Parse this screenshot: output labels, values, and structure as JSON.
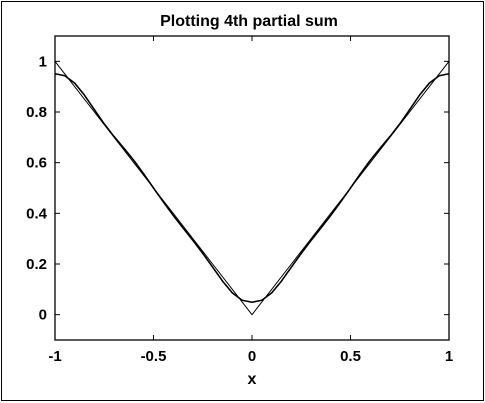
{
  "chart_data": {
    "type": "line",
    "title": "Plotting 4th partial sum",
    "xlabel": "x",
    "ylabel": "",
    "xlim": [
      -1,
      1
    ],
    "ylim": [
      -0.1,
      1.1
    ],
    "xticks": [
      -1,
      -0.5,
      0,
      0.5,
      1
    ],
    "xtick_labels": [
      "-1",
      "-0.5",
      "0",
      "0.5",
      "1"
    ],
    "yticks": [
      0,
      0.2,
      0.4,
      0.6,
      0.8,
      1
    ],
    "ytick_labels": [
      "0",
      "0.2",
      "0.4",
      "0.6",
      "0.8",
      "1"
    ],
    "grid": false,
    "legend": "none",
    "series": [
      {
        "values_x": [
          -1,
          -0.9,
          -0.8,
          -0.7,
          -0.6,
          -0.5,
          -0.4,
          -0.3,
          -0.2,
          -0.1,
          0,
          0.1,
          0.2,
          0.3,
          0.4,
          0.5,
          0.6,
          0.7,
          0.8,
          0.9,
          1
        ],
        "values_y": [
          1,
          0.9,
          0.8,
          0.7,
          0.6,
          0.5,
          0.4,
          0.3,
          0.2,
          0.1,
          0,
          0.1,
          0.2,
          0.3,
          0.4,
          0.5,
          0.6,
          0.7,
          0.8,
          0.9,
          1
        ],
        "color": "#000000"
      },
      {
        "values_x": [
          -1,
          -0.95,
          -0.9,
          -0.85,
          -0.8,
          -0.75,
          -0.7,
          -0.65,
          -0.6,
          -0.55,
          -0.5,
          -0.45,
          -0.4,
          -0.35,
          -0.3,
          -0.25,
          -0.2,
          -0.15,
          -0.1,
          -0.05,
          0,
          0.05,
          0.1,
          0.15,
          0.2,
          0.25,
          0.3,
          0.35,
          0.4,
          0.45,
          0.5,
          0.55,
          0.6,
          0.65,
          0.7,
          0.75,
          0.8,
          0.85,
          0.9,
          0.95,
          1
        ],
        "values_y": [
          0.951,
          0.943,
          0.914,
          0.866,
          0.809,
          0.753,
          0.703,
          0.657,
          0.609,
          0.556,
          0.5,
          0.445,
          0.392,
          0.342,
          0.293,
          0.242,
          0.188,
          0.133,
          0.086,
          0.057,
          0.049,
          0.057,
          0.086,
          0.133,
          0.188,
          0.242,
          0.293,
          0.342,
          0.392,
          0.445,
          0.5,
          0.556,
          0.609,
          0.657,
          0.703,
          0.753,
          0.809,
          0.866,
          0.914,
          0.943,
          0.951
        ],
        "color": "#000000"
      }
    ]
  }
}
